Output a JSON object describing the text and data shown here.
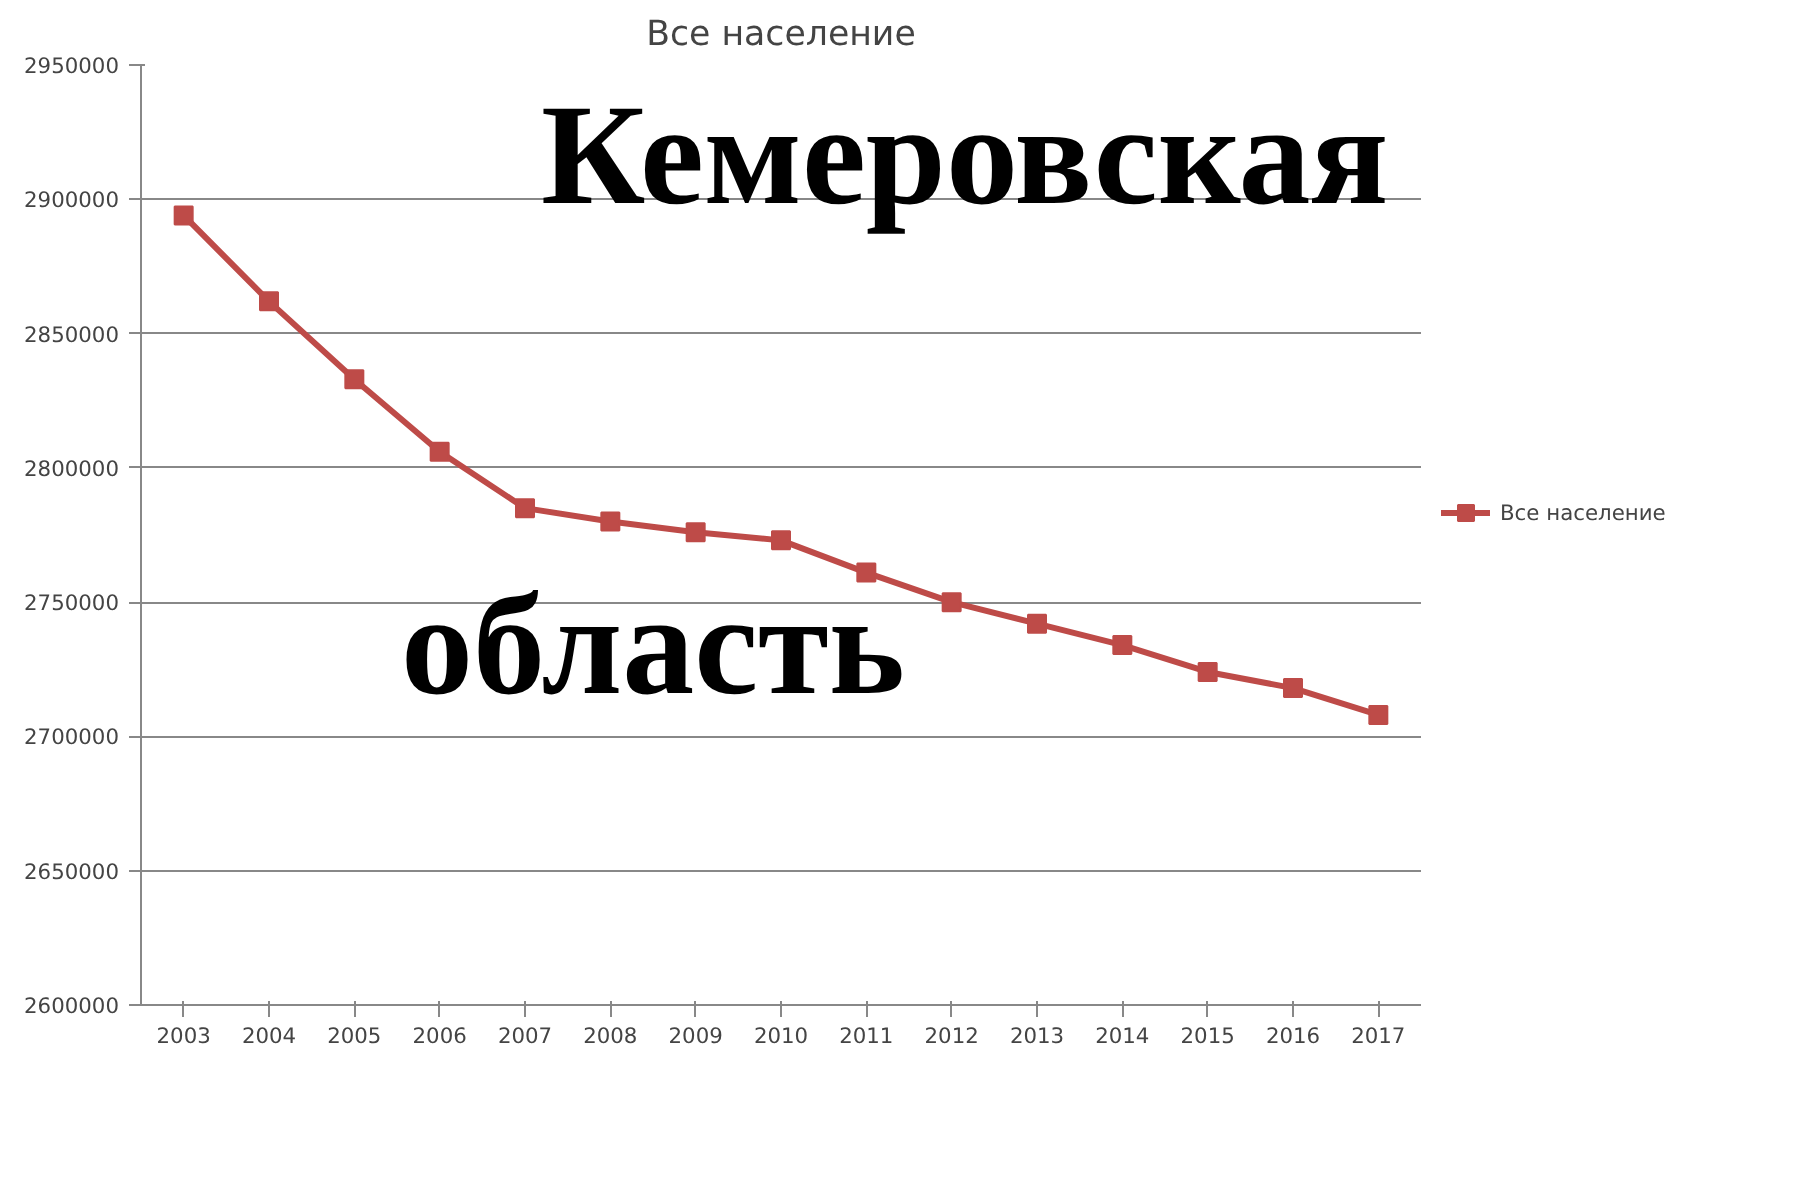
{
  "chart_data": {
    "type": "line",
    "title": "Все население",
    "categories": [
      "2003",
      "2004",
      "2005",
      "2006",
      "2007",
      "2008",
      "2009",
      "2010",
      "2011",
      "2012",
      "2013",
      "2014",
      "2015",
      "2016",
      "2017"
    ],
    "series": [
      {
        "name": "Все население",
        "color": "#be4b48",
        "values": [
          2894000,
          2862000,
          2833000,
          2806000,
          2785000,
          2780000,
          2776000,
          2773000,
          2761000,
          2750000,
          2742000,
          2734000,
          2724000,
          2718000,
          2708000
        ]
      }
    ],
    "ylim": [
      2600000,
      2950000
    ],
    "yticks": [
      2600000,
      2650000,
      2700000,
      2750000,
      2800000,
      2850000,
      2900000,
      2950000
    ],
    "grid": "y",
    "legend": "right",
    "marker": "square",
    "line_style": "solid",
    "annotations": [
      "Кемеровская",
      "область"
    ]
  }
}
